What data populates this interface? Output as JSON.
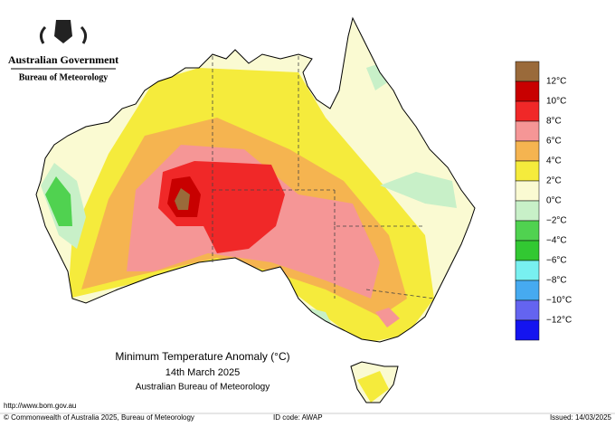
{
  "header": {
    "government": "Australian Government",
    "agency": "Bureau of Meteorology"
  },
  "legend": {
    "colors": [
      "#9a6a3a",
      "#c80000",
      "#f02828",
      "#f59696",
      "#f5b450",
      "#f5eb3c",
      "#fafad2",
      "#c8f0c8",
      "#50d250",
      "#32c832",
      "#78f0f0",
      "#46aaf0",
      "#6464f0",
      "#1414f0"
    ],
    "labels": [
      "12°C",
      "10°C",
      "8°C",
      "6°C",
      "4°C",
      "2°C",
      "0°C",
      "−2°C",
      "−4°C",
      "−6°C",
      "−8°C",
      "−10°C",
      "−12°C"
    ]
  },
  "title": {
    "line1": "Minimum Temperature Anomaly (°C)",
    "line2": "14th March 2025",
    "line3": "Australian Bureau of Meteorology"
  },
  "footer": {
    "url": "http://www.bom.gov.au",
    "copyright": "© Commonwealth of Australia 2025, Bureau of Meteorology",
    "id_code": "ID code: AWAP",
    "issued": "Issued: 14/03/2025"
  }
}
